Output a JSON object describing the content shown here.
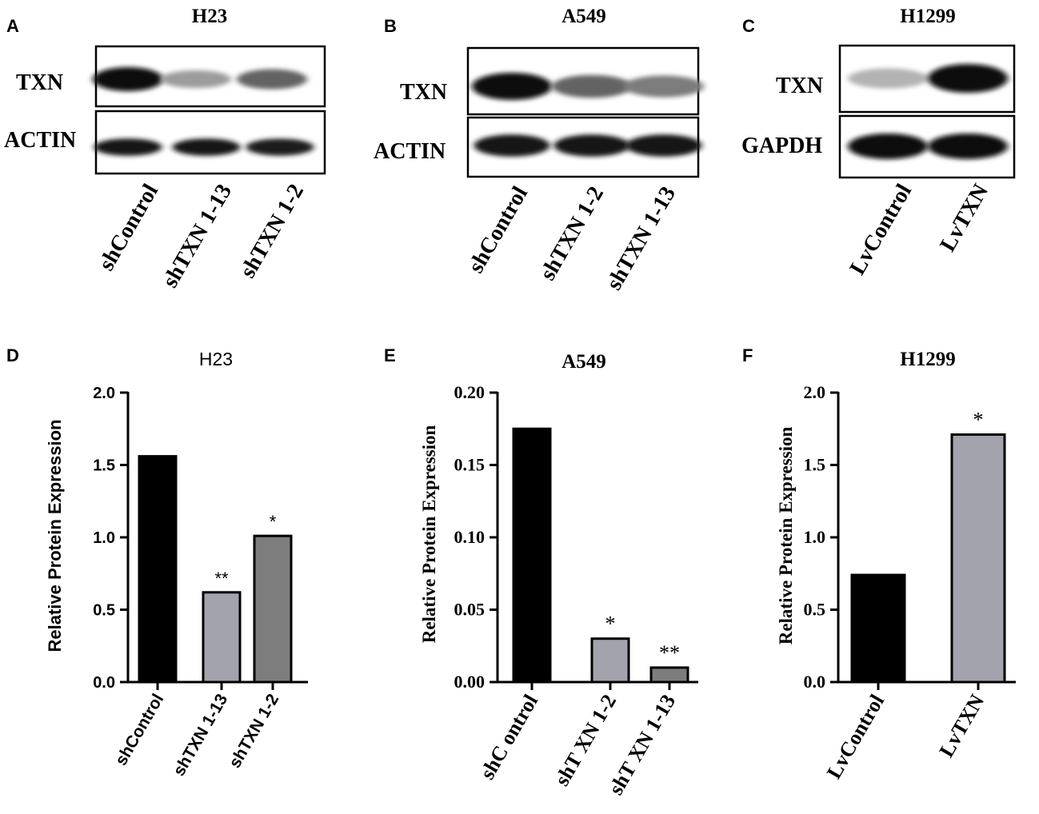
{
  "blots": [
    {
      "letter": "A",
      "title": "H23",
      "rows": [
        {
          "label": "TXN",
          "intensity": [
            1.0,
            0.35,
            0.6
          ]
        },
        {
          "label": "ACTIN",
          "intensity": [
            0.95,
            0.95,
            0.92
          ]
        }
      ],
      "lanes": [
        "shControl",
        "shTXN 1-13",
        "shTXN 1-2"
      ]
    },
    {
      "letter": "B",
      "title": "A549",
      "rows": [
        {
          "label": "TXN",
          "intensity": [
            1.0,
            0.6,
            0.5
          ]
        },
        {
          "label": "ACTIN",
          "intensity": [
            0.95,
            0.95,
            0.95
          ]
        }
      ],
      "lanes": [
        "shControl",
        "shTXN 1-2",
        "shTXN 1-13"
      ]
    },
    {
      "letter": "C",
      "title": "H1299",
      "rows": [
        {
          "label": "TXN",
          "intensity": [
            0.25,
            1.0
          ]
        },
        {
          "label": "GAPDH",
          "intensity": [
            1.0,
            1.0
          ]
        }
      ],
      "lanes": [
        "LvControl",
        "LvTXN"
      ]
    }
  ],
  "chart_data": [
    {
      "letter": "D",
      "type": "bar",
      "title": "H23",
      "ylabel": "Relative Protein Expression",
      "xlabel": "",
      "ylim": [
        0,
        2.0
      ],
      "yticks": [
        "0.0",
        "0.5",
        "1.0",
        "1.5",
        "2.0"
      ],
      "categories": [
        "shControl",
        "shTXN 1-13",
        "shTXN 1-2"
      ],
      "values": [
        1.56,
        0.62,
        1.01
      ],
      "significance": [
        "",
        "**",
        "*"
      ],
      "colors": [
        "#000000",
        "#a3a3ad",
        "#7d7d7d"
      ],
      "legend": "none",
      "grid": false
    },
    {
      "letter": "E",
      "type": "bar",
      "title": "A549",
      "ylabel": "Relative Protein Expression",
      "xlabel": "",
      "ylim": [
        0,
        0.2
      ],
      "yticks": [
        "0.00",
        "0.05",
        "0.10",
        "0.15",
        "0.20"
      ],
      "categories": [
        "shC ontrol",
        "shT XN 1-2",
        "shT XN 1-13"
      ],
      "values": [
        0.175,
        0.03,
        0.01
      ],
      "significance": [
        "",
        "*",
        "**"
      ],
      "colors": [
        "#000000",
        "#a3a3ad",
        "#7d7d7d"
      ],
      "legend": "none",
      "grid": false
    },
    {
      "letter": "F",
      "type": "bar",
      "title": "H1299",
      "ylabel": "Relative Protein Expression",
      "xlabel": "",
      "ylim": [
        0,
        2.0
      ],
      "yticks": [
        "0.0",
        "0.5",
        "1.0",
        "1.5",
        "2.0"
      ],
      "categories": [
        "LvControl",
        "LvTXN"
      ],
      "values": [
        0.74,
        1.71
      ],
      "significance": [
        "",
        "*"
      ],
      "colors": [
        "#000000",
        "#a3a3ad"
      ],
      "legend": "none",
      "grid": false
    }
  ]
}
